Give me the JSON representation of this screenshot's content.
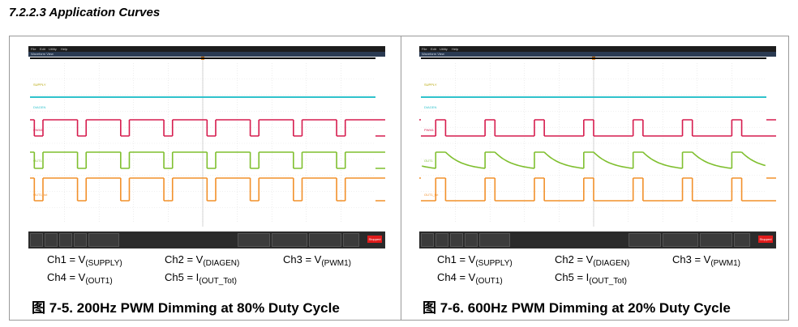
{
  "section_title": "7.2.2.3 Application Curves",
  "figures": [
    {
      "id": "fig-7-5",
      "caption": "图 7-5. 200Hz PWM Dimming at 80% Duty Cycle",
      "channels": [
        {
          "name": "Ch1 = V",
          "sub": "(SUPPLY)"
        },
        {
          "name": "Ch2 = V",
          "sub": "(DIAGEN)"
        },
        {
          "name": "Ch3 = V",
          "sub": "(PWM1)"
        },
        {
          "name": "Ch4 = V",
          "sub": "(OUT1)"
        },
        {
          "name": "Ch5 = I",
          "sub": "(OUT_Tot)"
        }
      ],
      "scope": {
        "menu": [
          "File",
          "Edit",
          "Utility",
          "Help"
        ],
        "view_label": "Waveform View",
        "trace_labels": {
          "supply": "SUPPLY",
          "diagen": "DIAGEN",
          "pwm": "PWM1",
          "out": "OUT1",
          "iout": "OUT1_tot"
        },
        "stop_label": "Stopped",
        "frequency_hz": 200,
        "duty_cycle": 0.8,
        "pulses_visible": 8,
        "out1_decay": false,
        "colors": {
          "supply": "#2fc2cc",
          "diagen": "#2fc2cc",
          "pwm": "#d61c4e",
          "out": "#7fbf2e",
          "iout": "#f2902a"
        }
      }
    },
    {
      "id": "fig-7-6",
      "caption": "图 7-6. 600Hz PWM Dimming at 20% Duty Cycle",
      "channels": [
        {
          "name": "Ch1 = V",
          "sub": "(SUPPLY)"
        },
        {
          "name": "Ch2 = V",
          "sub": "(DIAGEN)"
        },
        {
          "name": "Ch3 = V",
          "sub": "(PWM1)"
        },
        {
          "name": "Ch4 = V",
          "sub": "(OUT1)"
        },
        {
          "name": "Ch5 = I",
          "sub": "(OUT_Tot)"
        }
      ],
      "scope": {
        "menu": [
          "File",
          "Edit",
          "Utility",
          "Help"
        ],
        "view_label": "Waveform View",
        "trace_labels": {
          "supply": "SUPPLY",
          "diagen": "DIAGEN",
          "pwm": "PWM1",
          "out": "OUT1",
          "iout": "OUT1_tot"
        },
        "stop_label": "Stopped",
        "frequency_hz": 600,
        "duty_cycle": 0.2,
        "pulses_visible": 7,
        "out1_decay": true,
        "colors": {
          "supply": "#2fc2cc",
          "diagen": "#2fc2cc",
          "pwm": "#d61c4e",
          "out": "#7fbf2e",
          "iout": "#f2902a"
        }
      }
    }
  ]
}
